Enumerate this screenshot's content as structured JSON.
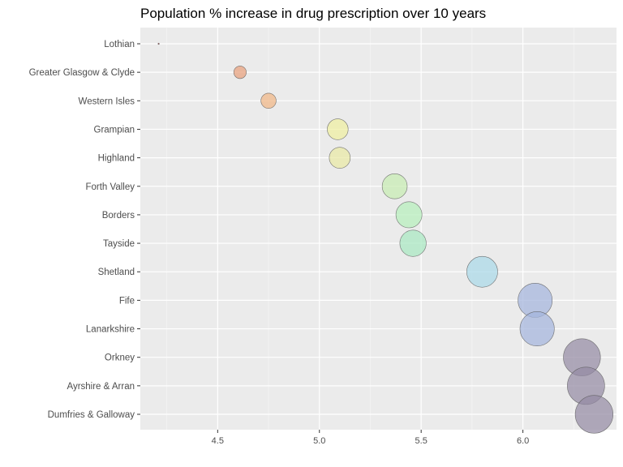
{
  "chart_data": {
    "type": "scatter",
    "title": "Population % increase in drug prescription over 10 years",
    "xlabel": "",
    "ylabel": "",
    "xlim": [
      4.12,
      6.46
    ],
    "x_ticks": [
      "4.5",
      "5.0",
      "5.5",
      "6.0"
    ],
    "x_tick_values": [
      4.5,
      5.0,
      5.5,
      6.0
    ],
    "grid": true,
    "legend": "none",
    "categories": [
      "Lothian",
      "Greater Glasgow & Clyde",
      "Western Isles",
      "Grampian",
      "Highland",
      "Forth Valley",
      "Borders",
      "Tayside",
      "Shetland",
      "Fife",
      "Lanarkshire",
      "Orkney",
      "Ayrshire & Arran",
      "Dumfries & Galloway"
    ],
    "x": [
      4.21,
      4.61,
      4.75,
      5.09,
      5.1,
      5.37,
      5.44,
      5.46,
      5.8,
      6.06,
      6.07,
      6.29,
      6.31,
      6.35
    ],
    "colors": [
      "#9e2a2a",
      "#e8a07c",
      "#f0b585",
      "#eeeea0",
      "#e9e9a3",
      "#c6ebb2",
      "#b5eebb",
      "#a8e8c0",
      "#a9d8e8",
      "#a4b4dc",
      "#a4b4dc",
      "#948ba4",
      "#948ba4",
      "#948ba4"
    ]
  }
}
